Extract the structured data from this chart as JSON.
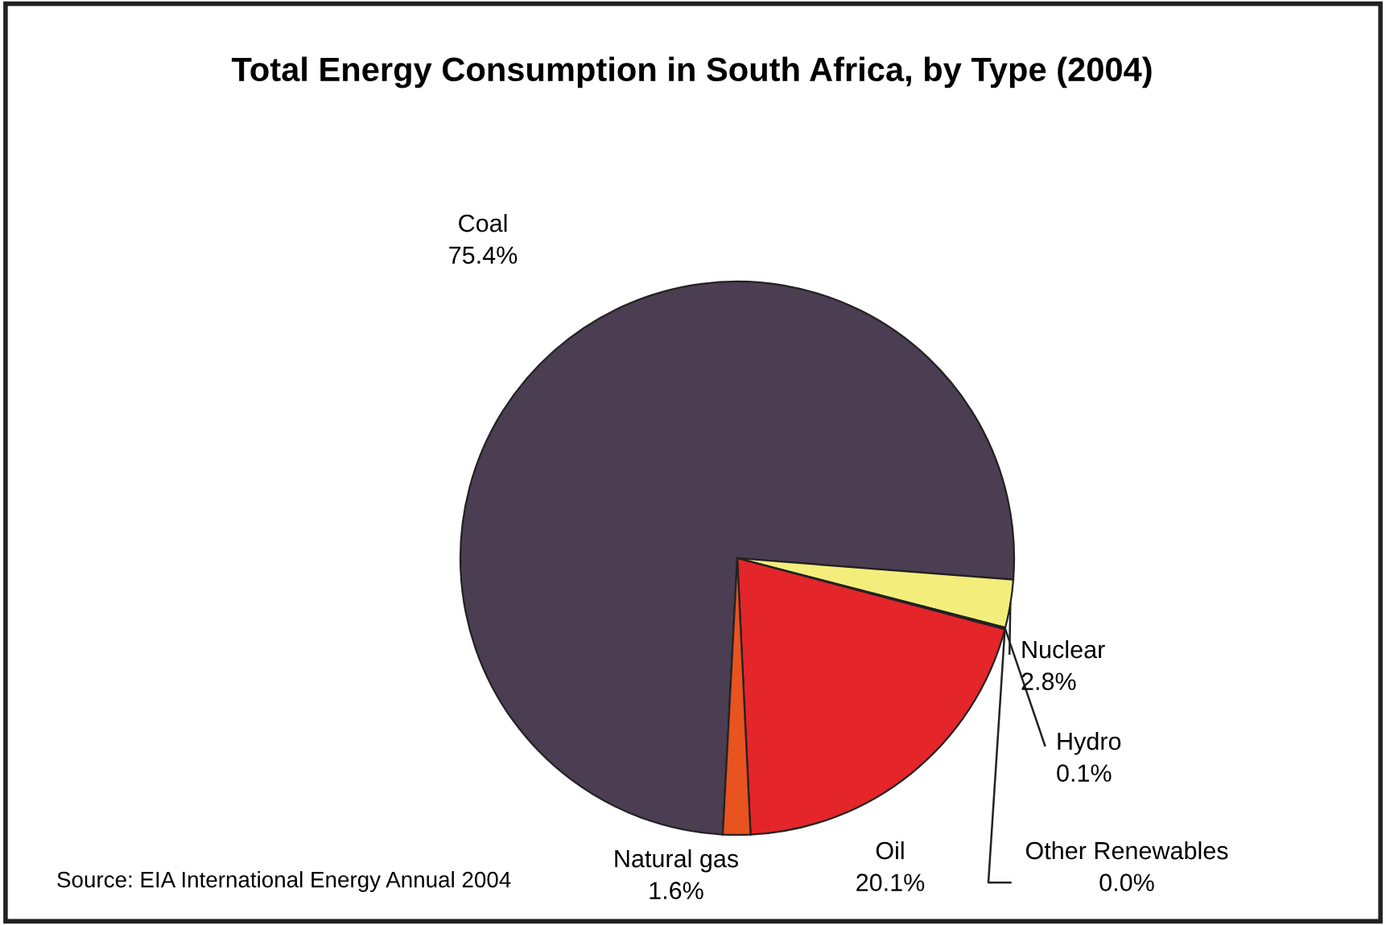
{
  "chart_data": {
    "type": "pie",
    "title": "Total Energy Consumption in South Africa, by Type (2004)",
    "categories": [
      "Coal",
      "Nuclear",
      "Hydro",
      "Other Renewables",
      "Oil",
      "Natural gas"
    ],
    "values": [
      75.4,
      2.8,
      0.1,
      0.0,
      20.1,
      1.6
    ],
    "colors": [
      "#4b3d52",
      "#f3ee7c",
      "#3a5fa8",
      "#6a8f3c",
      "#e4252a",
      "#e8531f"
    ],
    "value_labels": [
      "75.4%",
      "2.8%",
      "0.1%",
      "0.0%",
      "20.1%",
      "1.6%"
    ],
    "annotations": [
      "Source: EIA International Energy Annual 2004"
    ]
  }
}
